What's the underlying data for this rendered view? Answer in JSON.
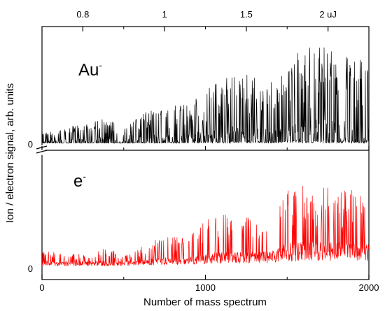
{
  "chart_data": {
    "type": "line",
    "xlabel": "Number of mass spectrum",
    "ylabel": "Ion / electron signal, arb. units",
    "xlim": [
      0,
      2000
    ],
    "x_ticks": [
      "0",
      "1000",
      "2000"
    ],
    "top_axis_ticks": [
      {
        "label": "0.8",
        "x": 250
      },
      {
        "label": "1",
        "x": 750
      },
      {
        "label": "1.5",
        "x": 1250
      },
      {
        "label": "2 uJ",
        "x": 1750
      }
    ],
    "grid": false,
    "legend": "none",
    "series": [
      {
        "label": "Au",
        "label_sup": "-",
        "color": "#000000",
        "zero_label": "0",
        "ylim": [
          0,
          1
        ],
        "envelope": {
          "x": [
            0,
            100,
            200,
            300,
            400,
            500,
            600,
            700,
            800,
            900,
            1000,
            1100,
            1200,
            1300,
            1400,
            1500,
            1600,
            1700,
            1800,
            1900,
            2000
          ],
          "peak": [
            0.08,
            0.12,
            0.15,
            0.18,
            0.22,
            0.12,
            0.25,
            0.3,
            0.32,
            0.33,
            0.45,
            0.55,
            0.6,
            0.58,
            0.55,
            0.72,
            0.8,
            0.85,
            0.82,
            0.75,
            0.7
          ]
        }
      },
      {
        "label": "e",
        "label_sup": "-",
        "color": "#ff0000",
        "zero_label": "0",
        "ylim": [
          0,
          1
        ],
        "envelope": {
          "x": [
            0,
            100,
            200,
            300,
            400,
            500,
            600,
            700,
            800,
            900,
            1000,
            1100,
            1200,
            1300,
            1400,
            1500,
            1600,
            1700,
            1800,
            1900,
            2000
          ],
          "peak": [
            0.14,
            0.14,
            0.12,
            0.13,
            0.18,
            0.1,
            0.18,
            0.25,
            0.28,
            0.3,
            0.42,
            0.5,
            0.5,
            0.42,
            0.35,
            0.7,
            0.75,
            0.72,
            0.72,
            0.7,
            0.62
          ],
          "baseline": [
            0.05,
            0.05,
            0.05,
            0.05,
            0.05,
            0.05,
            0.06,
            0.07,
            0.08,
            0.09,
            0.1,
            0.12,
            0.12,
            0.12,
            0.12,
            0.18,
            0.2,
            0.2,
            0.2,
            0.18,
            0.18
          ]
        }
      }
    ]
  }
}
